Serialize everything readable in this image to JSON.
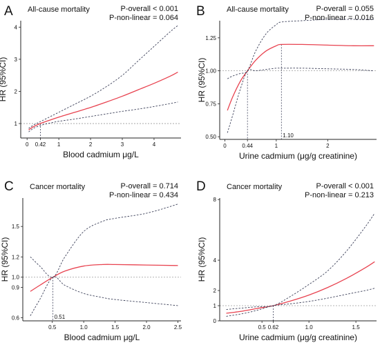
{
  "figure": {
    "colors": {
      "spline": "#e8424f",
      "ci": "#3b3f58",
      "ref": "#9a9a9a",
      "axis": "#222222"
    }
  },
  "chart_data": [
    {
      "type": "line",
      "panel_letter": "A",
      "title": "All-cause mortality",
      "p_overall": "P-overall < 0.001",
      "p_nonlinear": "P-non-linear = 0.064",
      "xlabel": "Blood cadmium μg/L",
      "ylabel": "HR (95%CI)",
      "xlim": [
        -0.2,
        4.85
      ],
      "ylim": [
        0.55,
        4.2
      ],
      "x_ticks": [
        {
          "value": 0,
          "label": "0"
        },
        {
          "value": 0.42,
          "label": "0.42"
        },
        {
          "value": 1,
          "label": "1"
        },
        {
          "value": 2,
          "label": "2"
        },
        {
          "value": 3,
          "label": "3"
        },
        {
          "value": 4,
          "label": "4"
        }
      ],
      "y_ticks": [
        {
          "value": 1,
          "label": "1"
        },
        {
          "value": 2,
          "label": "2"
        },
        {
          "value": 3,
          "label": "3"
        },
        {
          "value": 4,
          "label": "4"
        }
      ],
      "reference_hr": 1,
      "marked_x": [
        0.42
      ],
      "series": [
        {
          "role": "hr",
          "x": [
            0.05,
            0.2,
            0.42,
            0.7,
            1.0,
            1.5,
            2.0,
            2.5,
            3.0,
            3.5,
            4.0,
            4.5,
            4.75
          ],
          "values": [
            0.8,
            0.9,
            1.0,
            1.1,
            1.2,
            1.35,
            1.5,
            1.67,
            1.85,
            2.05,
            2.25,
            2.47,
            2.6
          ]
        },
        {
          "role": "ci_upper",
          "x": [
            0.05,
            0.2,
            0.42,
            0.7,
            1.0,
            1.5,
            2.0,
            2.5,
            3.0,
            3.5,
            4.0,
            4.5,
            4.75
          ],
          "values": [
            0.85,
            0.95,
            1.06,
            1.2,
            1.35,
            1.6,
            1.85,
            2.15,
            2.5,
            2.95,
            3.4,
            3.85,
            4.05
          ]
        },
        {
          "role": "ci_lower",
          "x": [
            0.05,
            0.2,
            0.42,
            0.7,
            1.0,
            1.5,
            2.0,
            2.5,
            3.0,
            3.5,
            4.0,
            4.5,
            4.75
          ],
          "values": [
            0.74,
            0.85,
            0.94,
            1.01,
            1.07,
            1.14,
            1.22,
            1.3,
            1.38,
            1.45,
            1.53,
            1.62,
            1.67
          ]
        }
      ]
    },
    {
      "type": "line",
      "panel_letter": "B",
      "title": "All-cause mortality",
      "p_overall": "P-overall = 0.055",
      "p_nonlinear": "P-non-linear = 0.016",
      "xlabel": "Urine cadmium (μg/g creatinine)",
      "ylabel": "HR (95%CI)",
      "xlim": [
        -0.1,
        2.95
      ],
      "ylim": [
        0.48,
        1.38
      ],
      "x_ticks": [
        {
          "value": 0,
          "label": "0"
        },
        {
          "value": 0.44,
          "label": "0.44"
        },
        {
          "value": 1,
          "label": "1"
        },
        {
          "value": 2,
          "label": "2"
        }
      ],
      "y_ticks": [
        {
          "value": 0.5,
          "label": "0.50"
        },
        {
          "value": 0.75,
          "label": "0.75"
        },
        {
          "value": 1.0,
          "label": "1.00"
        },
        {
          "value": 1.25,
          "label": "1.25"
        }
      ],
      "reference_hr": 1,
      "marked_x": [
        0.44,
        1.1
      ],
      "marked_x_labels": [
        {
          "value": 1.1,
          "label": "1.10"
        }
      ],
      "series": [
        {
          "role": "hr",
          "x": [
            0.05,
            0.15,
            0.3,
            0.44,
            0.6,
            0.8,
            1.0,
            1.1,
            1.5,
            2.0,
            2.5,
            2.9
          ],
          "values": [
            0.7,
            0.8,
            0.92,
            1.0,
            1.08,
            1.15,
            1.19,
            1.2,
            1.2,
            1.195,
            1.19,
            1.19
          ]
        },
        {
          "role": "ci_upper",
          "x": [
            0.05,
            0.15,
            0.3,
            0.44,
            0.6,
            0.8,
            1.0,
            1.1,
            1.5,
            2.0,
            2.5,
            2.9
          ],
          "values": [
            0.94,
            0.96,
            0.98,
            1.0,
            1.15,
            1.28,
            1.35,
            1.37,
            1.38,
            1.39,
            1.39,
            1.39
          ]
        },
        {
          "role": "ci_lower",
          "x": [
            0.05,
            0.15,
            0.3,
            0.44,
            0.6,
            0.8,
            1.0,
            1.1,
            1.5,
            2.0,
            2.5,
            2.9
          ],
          "values": [
            0.53,
            0.66,
            0.86,
            1.0,
            1.0,
            1.01,
            1.02,
            1.02,
            1.02,
            1.015,
            1.01,
            1.0
          ]
        }
      ]
    },
    {
      "type": "line",
      "panel_letter": "C",
      "title": "Cancer mortality",
      "p_overall": "P-overall = 0.714",
      "p_nonlinear": "P-non-linear = 0.434",
      "xlabel": "Blood cadmium μg/L",
      "ylabel": "HR (95%CI)",
      "xlim": [
        0.03,
        2.55
      ],
      "ylim": [
        0.57,
        1.78
      ],
      "x_ticks": [
        {
          "value": 0.5,
          "label": "0.5"
        },
        {
          "value": 1.0,
          "label": "1.0"
        },
        {
          "value": 1.5,
          "label": "1.5"
        },
        {
          "value": 2.0,
          "label": "2.0"
        },
        {
          "value": 2.5,
          "label": "2.5"
        }
      ],
      "y_ticks": [
        {
          "value": 0.6,
          "label": "0.6"
        },
        {
          "value": 0.9,
          "label": "0.9"
        },
        {
          "value": 1.0,
          "label": "1.0"
        },
        {
          "value": 1.2,
          "label": "1.2"
        },
        {
          "value": 1.5,
          "label": "1.5"
        }
      ],
      "reference_hr": 1,
      "marked_x": [
        0.51
      ],
      "marked_x_labels": [
        {
          "value": 0.51,
          "label": "0.51"
        }
      ],
      "series": [
        {
          "role": "hr",
          "x": [
            0.15,
            0.3,
            0.51,
            0.7,
            1.0,
            1.3,
            1.5,
            2.0,
            2.5
          ],
          "values": [
            0.86,
            0.92,
            1.0,
            1.06,
            1.11,
            1.125,
            1.125,
            1.12,
            1.115
          ]
        },
        {
          "role": "ci_upper",
          "x": [
            0.15,
            0.3,
            0.51,
            0.7,
            1.0,
            1.3,
            1.5,
            2.0,
            2.5
          ],
          "values": [
            1.2,
            1.11,
            1.0,
            1.2,
            1.45,
            1.55,
            1.58,
            1.63,
            1.72
          ]
        },
        {
          "role": "ci_lower",
          "x": [
            0.15,
            0.3,
            0.51,
            0.7,
            1.0,
            1.3,
            1.5,
            2.0,
            2.5
          ],
          "values": [
            0.62,
            0.78,
            1.0,
            0.92,
            0.84,
            0.8,
            0.78,
            0.75,
            0.72
          ]
        }
      ]
    },
    {
      "type": "line",
      "panel_letter": "D",
      "title": "Cancer mortality",
      "p_overall": "P-overall < 0.001",
      "p_nonlinear": "P-non-linear = 0.213",
      "xlabel": "Urine cadmium (μg/g creatinine)",
      "ylabel": "HR (95%CI)",
      "xlim": [
        0.05,
        1.72
      ],
      "ylim": [
        0.0,
        8.1
      ],
      "x_ticks": [
        {
          "value": 0.5,
          "label": "0.5"
        },
        {
          "value": 0.62,
          "label": "0.62"
        },
        {
          "value": 1.0,
          "label": "1.0"
        },
        {
          "value": 1.5,
          "label": "1.5"
        }
      ],
      "y_ticks": [
        {
          "value": 0,
          "label": "0"
        },
        {
          "value": 1,
          "label": "1"
        },
        {
          "value": 2,
          "label": "2"
        },
        {
          "value": 4,
          "label": "4"
        },
        {
          "value": 8,
          "label": "8"
        }
      ],
      "reference_hr": 1,
      "marked_x": [
        0.62
      ],
      "series": [
        {
          "role": "hr",
          "x": [
            0.12,
            0.3,
            0.45,
            0.62,
            0.8,
            1.0,
            1.2,
            1.4,
            1.6,
            1.7
          ],
          "values": [
            0.5,
            0.65,
            0.82,
            1.0,
            1.3,
            1.7,
            2.2,
            2.8,
            3.5,
            3.9
          ]
        },
        {
          "role": "ci_upper",
          "x": [
            0.12,
            0.3,
            0.45,
            0.62,
            0.8,
            1.0,
            1.2,
            1.4,
            1.6,
            1.7
          ],
          "values": [
            0.75,
            0.85,
            0.93,
            1.0,
            1.6,
            2.4,
            3.3,
            4.6,
            6.2,
            7.1
          ]
        },
        {
          "role": "ci_lower",
          "x": [
            0.12,
            0.3,
            0.45,
            0.62,
            0.8,
            1.0,
            1.2,
            1.4,
            1.6,
            1.7
          ],
          "values": [
            0.3,
            0.48,
            0.7,
            1.0,
            1.12,
            1.28,
            1.5,
            1.75,
            2.0,
            2.15
          ]
        }
      ]
    }
  ]
}
